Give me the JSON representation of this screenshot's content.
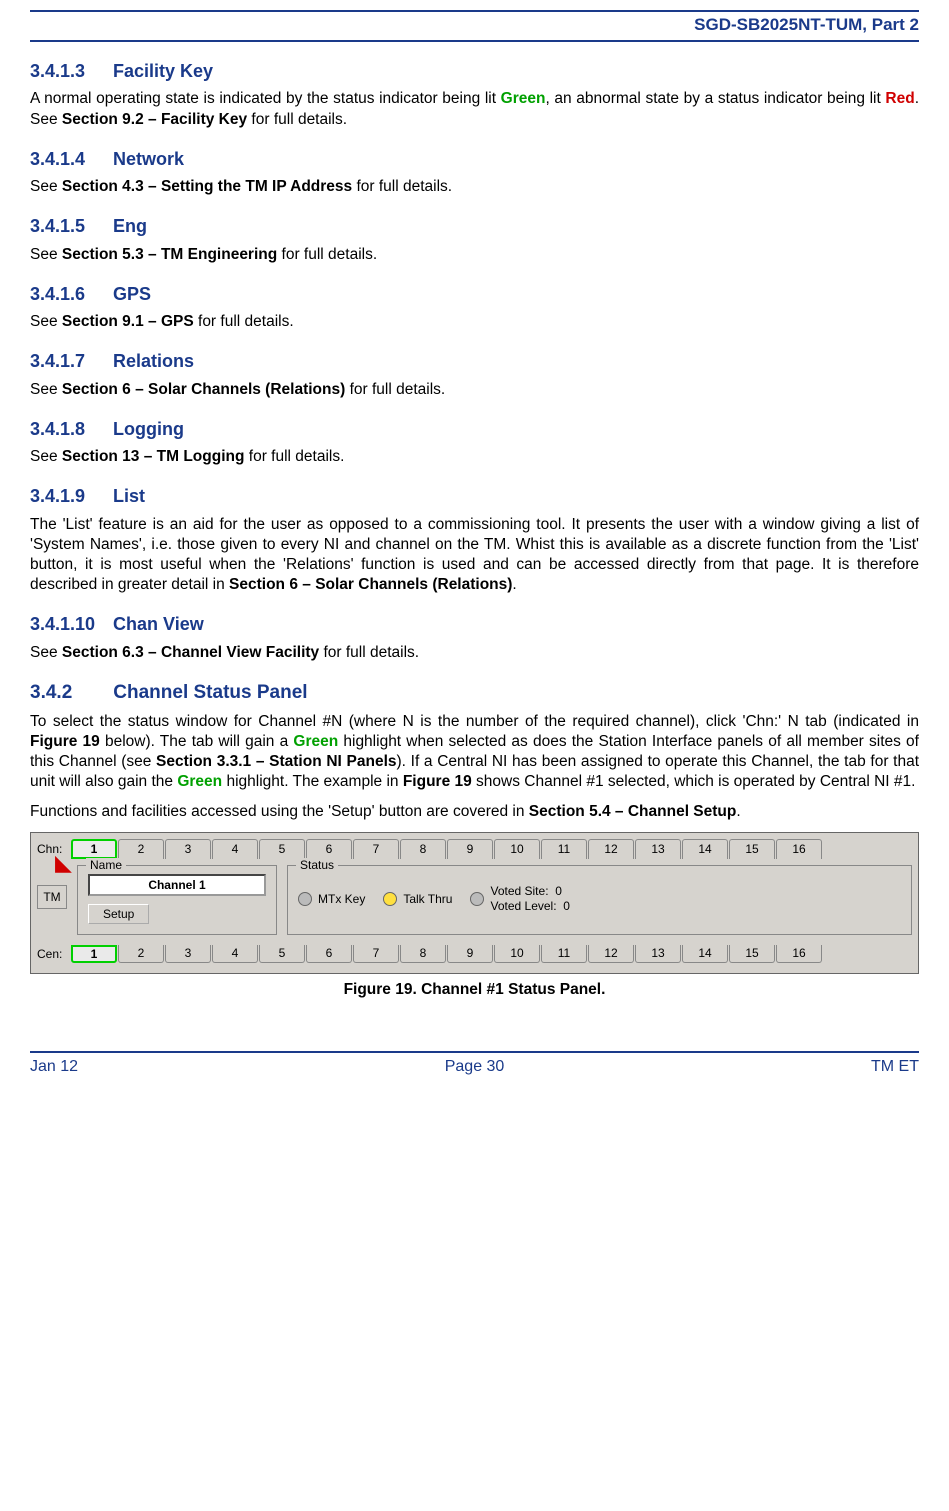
{
  "header": {
    "doc_id": "SGD-SB2025NT-TUM, Part 2"
  },
  "colors": {
    "brand": "#1a3a8a",
    "green_text": "#00a000",
    "red_text": "#d00000",
    "panel_bg": "#d6d3ce",
    "led_off": "#bbbbbb",
    "led_yellow": "#ffe040",
    "sel_border": "#00d000"
  },
  "sections": {
    "s3": {
      "num": "3.4.1.3",
      "title": "Facility Key",
      "p_a": "A normal operating state is indicated by the status indicator being lit ",
      "p_green": "Green",
      "p_b": ", an abnormal state by a status indicator being lit ",
      "p_red": "Red",
      "p_c": ".  See ",
      "p_bold": "Section 9.2 – Facility Key",
      "p_d": " for full details."
    },
    "s4": {
      "num": "3.4.1.4",
      "title": "Network",
      "p_a": "See ",
      "p_bold": "Section 4.3 – Setting the TM IP Address",
      "p_b": " for full details."
    },
    "s5": {
      "num": "3.4.1.5",
      "title": "Eng",
      "p_a": "See ",
      "p_bold": "Section 5.3 – TM Engineering",
      "p_b": " for full details."
    },
    "s6": {
      "num": "3.4.1.6",
      "title": "GPS",
      "p_a": "See ",
      "p_bold": "Section 9.1 – GPS",
      "p_b": " for full details."
    },
    "s7": {
      "num": "3.4.1.7",
      "title": "Relations",
      "p_a": "See ",
      "p_bold": "Section 6 – Solar Channels (Relations)",
      "p_b": " for full details."
    },
    "s8": {
      "num": "3.4.1.8",
      "title": "Logging",
      "p_a": "See ",
      "p_bold": "Section 13 – TM Logging",
      "p_b": " for full details."
    },
    "s9": {
      "num": "3.4.1.9",
      "title": "List",
      "p_a": "The 'List' feature is an aid for the user as opposed to a commissioning tool.  It presents the user with a window giving a list of 'System Names', i.e. those given to every NI and channel on the TM.  Whist this is available as a discrete function from the 'List' button, it is most useful when the 'Relations' function is used and can be accessed directly from that page.  It is therefore described in greater detail in ",
      "p_bold": "Section 6 – Solar Channels (Relations)",
      "p_b": "."
    },
    "s10": {
      "num": "3.4.1.10",
      "title": "Chan View",
      "p_a": "See ",
      "p_bold": "Section 6.3 – Channel View Facility",
      "p_b": " for full details."
    },
    "s342": {
      "num": "3.4.2",
      "title": "Channel Status Panel",
      "p1_a": "To select the status window for Channel #N (where N is the number of the required channel), click 'Chn:' N tab (indicated in ",
      "p1_b1": "Figure 19",
      "p1_c": " below).  The tab will gain a ",
      "p1_green": "Green",
      "p1_d": " highlight when selected as does the Station Interface panels of all member sites of this Channel (see ",
      "p1_b2": "Section 3.3.1 – Station NI Panels",
      "p1_e": ").  If a Central NI has been assigned to operate this Channel, the tab for that unit will also gain the ",
      "p1_green2": "Green",
      "p1_f": " highlight.  The example in ",
      "p1_b3": "Figure 19",
      "p1_g": " shows Channel #1 selected, which is operated by Central NI #1.",
      "p2_a": "Functions and facilities accessed using the 'Setup' button are covered in ",
      "p2_b": "Section 5.4 – Channel Setup",
      "p2_c": "."
    }
  },
  "figure": {
    "chn_label": "Chn:",
    "cen_label": "Cen:",
    "tm_label": "TM",
    "tabs": [
      "1",
      "2",
      "3",
      "4",
      "5",
      "6",
      "7",
      "8",
      "9",
      "10",
      "11",
      "12",
      "13",
      "14",
      "15",
      "16"
    ],
    "selected_chn": 1,
    "selected_cen": 1,
    "name_legend": "Name",
    "name_value": "Channel 1",
    "setup_label": "Setup",
    "status_legend": "Status",
    "mtx_label": "MTx Key",
    "talk_label": "Talk Thru",
    "voted_site_label": "Voted Site:",
    "voted_site_val": "0",
    "voted_level_label": "Voted Level:",
    "voted_level_val": "0",
    "caption": "Figure 19.  Channel #1 Status Panel."
  },
  "footer": {
    "left": "Jan 12",
    "center": "Page 30",
    "right": "TM ET"
  }
}
